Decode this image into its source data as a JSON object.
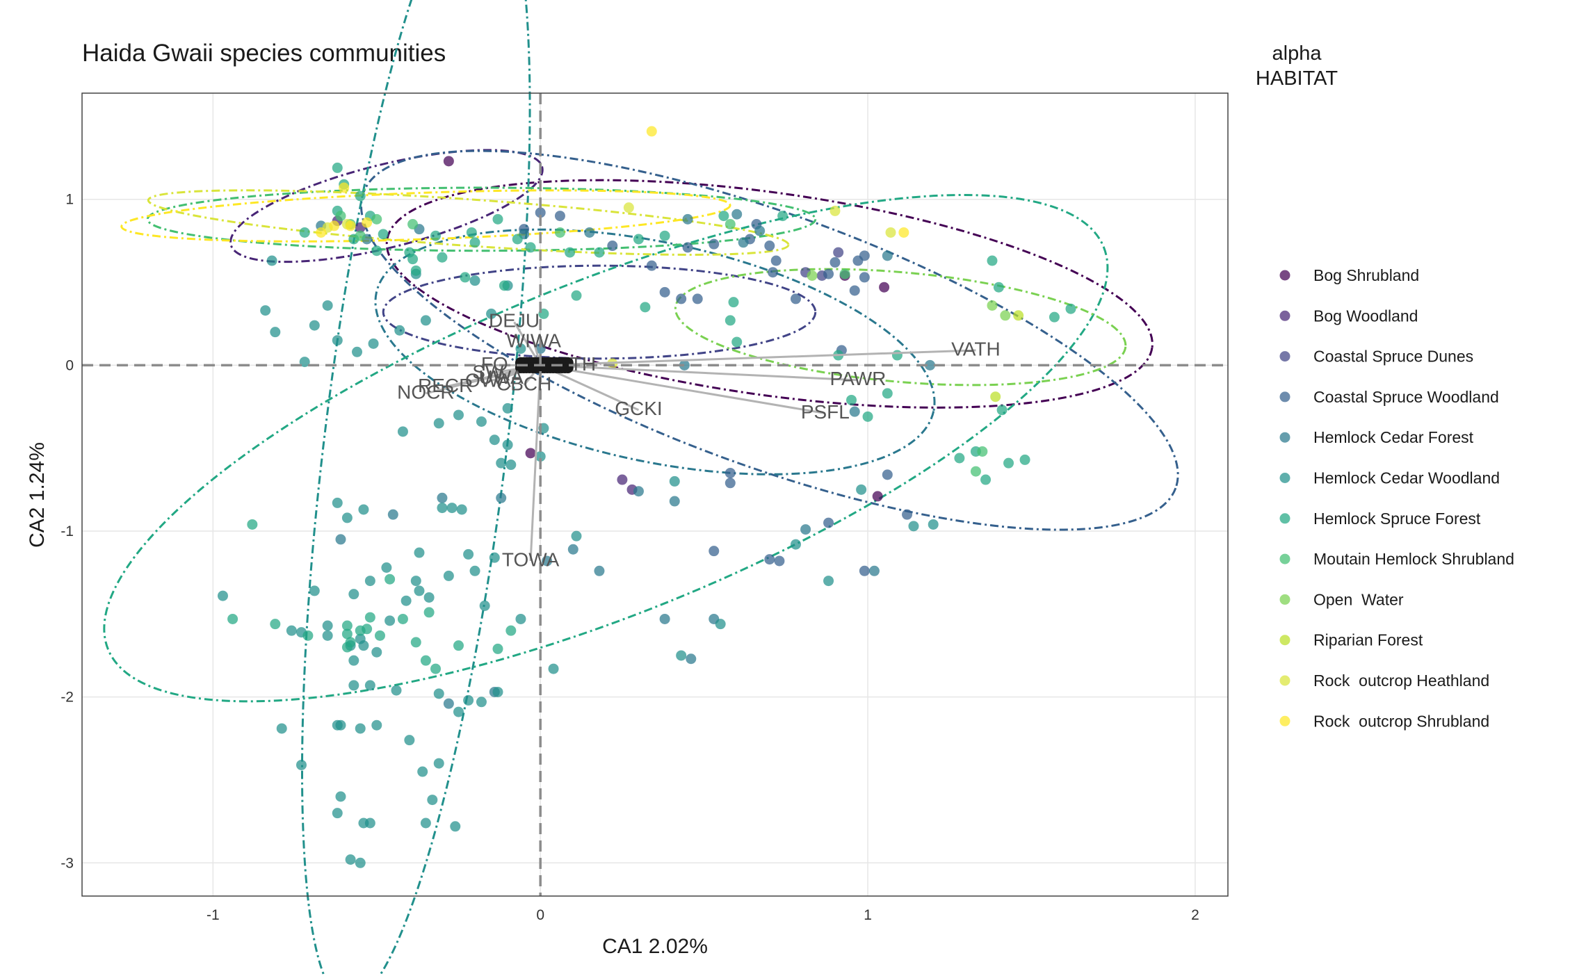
{
  "chart_data": {
    "type": "scatter",
    "title": "Haida Gwaii species communities",
    "xlabel": "CA1 2.02%",
    "ylabel": "CA2 1.24%",
    "xlim": [
      -1.4,
      2.1
    ],
    "ylim": [
      -3.2,
      1.64
    ],
    "xticks": [
      -1,
      0,
      1,
      2
    ],
    "yticks": [
      -3,
      -2,
      -1,
      0,
      1
    ],
    "xtick_labels": [
      "-1",
      "0",
      "1",
      "2"
    ],
    "ytick_labels": [
      "-3",
      "-2",
      "-1",
      "0",
      "1"
    ],
    "grid": true,
    "reference_lines": {
      "x": 0,
      "y": 0,
      "style": "dashed"
    },
    "legend": {
      "title_line1": "alpha",
      "title_line2": "HABITAT",
      "position": "right"
    },
    "colors": {
      "Bog Shrubland": "#440154",
      "Bog Woodland": "#482576",
      "Coastal Spruce Dunes": "#414487",
      "Coastal Spruce Woodland": "#35608D",
      "Hemlock Cedar Forest": "#2A788E",
      "Hemlock Cedar Woodland": "#21908C",
      "Hemlock Spruce Forest": "#22A884",
      "Moutain Hemlock Shrubland": "#43BF71",
      "Open  Water": "#7AD151",
      "Riparian Forest": "#BBDF27",
      "Rock  outcrop Heathland": "#D9E43A",
      "Rock  outcrop Shrubland": "#FDE725"
    },
    "series": [
      {
        "name": "Bog Shrubland",
        "x": [
          -0.28,
          0.93,
          1.05,
          1.03,
          -0.03
        ],
        "y": [
          1.23,
          0.54,
          0.47,
          -0.79,
          -0.53
        ]
      },
      {
        "name": "Bog Woodland",
        "x": [
          -0.62,
          -0.55,
          0.25,
          0.28
        ],
        "y": [
          0.87,
          0.83,
          -0.69,
          -0.75
        ]
      },
      {
        "name": "Coastal Spruce Dunes",
        "x": [
          0.81,
          0.86,
          0.91
        ],
        "y": [
          0.56,
          0.54,
          0.68
        ]
      },
      {
        "name": "Coastal Spruce Woodland",
        "x": [
          0.66,
          0.7,
          0.71,
          0.45,
          0.53,
          0.78,
          0.88,
          0.9,
          0.97,
          0.99,
          0.96,
          0.99,
          0.38,
          0.43,
          0.48,
          0.22,
          -0.05,
          0.0,
          0.06,
          0.34,
          0.64,
          0.72,
          0.92,
          1.06,
          1.12,
          0.88,
          0.7,
          0.73,
          0.99,
          0.53,
          0.58,
          0.58
        ],
        "y": [
          0.85,
          0.72,
          0.56,
          0.71,
          0.73,
          0.4,
          0.55,
          0.62,
          0.63,
          0.53,
          0.45,
          0.66,
          0.44,
          0.4,
          0.4,
          0.72,
          0.82,
          0.92,
          0.9,
          0.6,
          0.76,
          0.63,
          0.09,
          -0.66,
          -0.9,
          -0.95,
          -1.17,
          -1.18,
          -1.24,
          -1.12,
          -0.65,
          -0.71
        ]
      },
      {
        "name": "Hemlock Cedar Forest",
        "x": [
          -0.67,
          -0.53,
          -0.37,
          -0.05,
          0.15,
          0.45,
          0.67,
          0.6,
          0.62,
          1.06,
          1.19,
          0.96,
          0.38,
          0.53,
          0.18,
          0.1,
          0.02,
          -0.12,
          -0.3,
          -0.45,
          -0.61,
          0.0,
          0.44,
          0.46,
          0.81,
          1.02,
          -0.14,
          -0.28,
          0.3,
          0.41
        ],
        "y": [
          0.84,
          0.76,
          0.82,
          0.79,
          0.8,
          0.88,
          0.81,
          0.91,
          0.74,
          0.66,
          0.0,
          -0.28,
          -1.53,
          -1.53,
          -1.24,
          -1.11,
          -1.18,
          -0.8,
          -0.8,
          -0.9,
          -1.05,
          0.1,
          0.0,
          -1.77,
          -0.99,
          -1.24,
          -1.97,
          -2.04,
          -0.76,
          -0.82
        ]
      },
      {
        "name": "Hemlock Cedar Woodland",
        "x": [
          -0.82,
          -0.84,
          -0.81,
          -0.72,
          -0.65,
          -0.62,
          -0.69,
          -0.56,
          -0.51,
          -0.43,
          -0.35,
          -0.38,
          -0.2,
          -0.15,
          -0.1,
          -0.06,
          0.01,
          -0.42,
          -0.25,
          -0.31,
          -0.18,
          -0.14,
          -0.1,
          -0.09,
          -0.62,
          -0.59,
          -0.54,
          -0.52,
          -0.47,
          -0.38,
          -0.41,
          -0.3,
          -0.27,
          -0.24,
          -0.12,
          -0.57,
          -0.46,
          -0.69,
          -0.76,
          -0.58,
          -0.57,
          -0.5,
          -0.37,
          -0.34,
          -0.28,
          -0.2,
          -0.14,
          -0.55,
          -0.54,
          -0.65,
          -0.73,
          -0.65,
          -0.57,
          -0.52,
          -0.44,
          -0.31,
          -0.25,
          -0.18,
          -0.22,
          -0.13,
          -0.97,
          -0.62,
          -0.55,
          -0.5,
          -0.4,
          -0.36,
          -0.31,
          -0.61,
          -0.73,
          -0.79,
          -0.62,
          -0.61,
          -0.54,
          -0.52,
          -0.58,
          -0.55,
          -0.35,
          -0.26,
          -0.33,
          0.04,
          0.43,
          0.55,
          0.78,
          0.88,
          0.98,
          1.14,
          1.2,
          -0.37,
          -0.22,
          0.11,
          0.41,
          -0.1,
          0.0,
          -0.17,
          -0.06
        ],
        "y": [
          0.63,
          0.33,
          0.2,
          0.02,
          0.36,
          0.15,
          0.24,
          0.08,
          0.13,
          0.21,
          0.27,
          0.55,
          0.51,
          0.31,
          0.48,
          0.1,
          -0.38,
          -0.4,
          -0.3,
          -0.35,
          -0.34,
          -0.45,
          -0.26,
          -0.6,
          -0.83,
          -0.92,
          -0.87,
          -1.3,
          -1.22,
          -1.3,
          -1.42,
          -0.86,
          -0.86,
          -0.87,
          -0.59,
          -1.38,
          -1.54,
          -1.36,
          -1.6,
          -1.69,
          -1.78,
          -1.73,
          -1.36,
          -1.4,
          -1.27,
          -1.24,
          -1.16,
          -1.65,
          -1.69,
          -1.63,
          -1.61,
          -1.57,
          -1.93,
          -1.93,
          -1.96,
          -1.98,
          -2.09,
          -2.03,
          -2.02,
          -1.97,
          -1.39,
          -2.17,
          -2.19,
          -2.17,
          -2.26,
          -2.45,
          -2.4,
          -2.17,
          -2.41,
          -2.19,
          -2.7,
          -2.6,
          -2.76,
          -2.76,
          -2.98,
          -3.0,
          -2.76,
          -2.78,
          -2.62,
          -1.83,
          -1.75,
          -1.56,
          -1.08,
          -1.3,
          -0.75,
          -0.97,
          -0.96,
          -1.13,
          -1.14,
          -1.03,
          -0.7,
          -0.48,
          -0.55,
          -1.45,
          -1.53
        ]
      },
      {
        "name": "Hemlock Spruce Forest",
        "x": [
          -0.62,
          -0.6,
          -0.55,
          -0.52,
          -0.48,
          -0.4,
          -0.38,
          -0.32,
          -0.21,
          -0.13,
          -0.07,
          -0.03,
          0.09,
          0.18,
          0.3,
          0.38,
          0.56,
          0.74,
          -0.72,
          -0.62,
          -0.57,
          -0.5,
          -0.39,
          -0.3,
          -0.2,
          -0.23,
          -0.11,
          0.01,
          0.11,
          0.32,
          0.58,
          0.59,
          0.6,
          0.91,
          0.95,
          1.0,
          1.06,
          1.09,
          -0.88,
          -0.94,
          -0.81,
          -0.71,
          -0.59,
          -0.49,
          -0.42,
          -0.35,
          -0.32,
          -0.25,
          -0.13,
          -0.09,
          -0.38,
          -0.34,
          -0.55,
          -0.59,
          -0.58,
          -0.59,
          -0.53,
          -0.46,
          -0.52,
          1.36,
          1.28,
          1.33,
          1.43,
          1.48,
          1.38,
          1.4,
          1.57,
          1.62,
          1.41
        ],
        "y": [
          1.19,
          1.09,
          1.02,
          0.9,
          0.79,
          0.68,
          0.57,
          0.78,
          0.8,
          0.88,
          0.76,
          0.71,
          0.68,
          0.68,
          0.76,
          0.78,
          0.9,
          0.9,
          0.8,
          0.93,
          0.76,
          0.69,
          0.64,
          0.65,
          0.74,
          0.53,
          0.48,
          0.31,
          0.42,
          0.35,
          0.27,
          0.38,
          0.14,
          0.06,
          -0.21,
          -0.31,
          -0.17,
          0.06,
          -0.96,
          -1.53,
          -1.56,
          -1.63,
          -1.7,
          -1.63,
          -1.53,
          -1.78,
          -1.83,
          -1.69,
          -1.71,
          -1.6,
          -1.67,
          -1.49,
          -1.6,
          -1.57,
          -1.67,
          -1.62,
          -1.59,
          -1.29,
          -1.52,
          -0.69,
          -0.56,
          -0.52,
          -0.59,
          -0.57,
          0.63,
          0.47,
          0.29,
          0.34,
          -0.27
        ]
      },
      {
        "name": "Moutain Hemlock Shrubland",
        "x": [
          -0.61,
          -0.58,
          -0.55,
          -0.5,
          -0.39,
          0.06,
          1.35,
          1.33,
          0.93,
          0.58
        ],
        "y": [
          0.9,
          0.85,
          0.78,
          0.88,
          0.85,
          0.8,
          -0.52,
          -0.64,
          0.55,
          0.85
        ]
      },
      {
        "name": "Open  Water",
        "x": [
          1.38,
          1.42,
          0.83
        ],
        "y": [
          0.36,
          0.3,
          0.54
        ]
      },
      {
        "name": "Riparian Forest",
        "x": [
          1.46,
          1.39
        ],
        "y": [
          0.3,
          -0.19
        ]
      },
      {
        "name": "Rock  outcrop Heathland",
        "x": [
          0.9,
          1.07,
          0.27,
          -0.65,
          -0.59,
          0.22
        ],
        "y": [
          0.93,
          0.8,
          0.95,
          0.83,
          0.85,
          0.01
        ]
      },
      {
        "name": "Rock  outcrop Shrubland",
        "x": [
          0.34,
          1.11,
          -0.67,
          -0.63,
          -0.58,
          -0.53,
          -0.6
        ],
        "y": [
          1.41,
          0.8,
          0.8,
          0.84,
          0.84,
          0.86,
          1.07
        ]
      }
    ],
    "ellipses": [
      {
        "name": "Bog Shrubland",
        "cx": 0.7,
        "cy": 0.43,
        "rx": 1.18,
        "ry": 0.61,
        "angle": -8
      },
      {
        "name": "Bog Woodland",
        "cx": -0.47,
        "cy": 0.96,
        "rx": 0.49,
        "ry": 0.25,
        "angle": 14
      },
      {
        "name": "Coastal Spruce Dunes",
        "cx": 0.18,
        "cy": 0.32,
        "rx": 0.66,
        "ry": 0.28,
        "angle": 0
      },
      {
        "name": "Coastal Spruce Woodland",
        "cx": 0.7,
        "cy": 0.15,
        "rx": 1.32,
        "ry": 0.76,
        "angle": -20
      },
      {
        "name": "Hemlock Cedar Forest",
        "cx": 0.35,
        "cy": 0.08,
        "rx": 0.87,
        "ry": 0.66,
        "angle": -12
      },
      {
        "name": "Hemlock Cedar Woodland",
        "cx": -0.38,
        "cy": -0.45,
        "rx": 1.73,
        "ry": 0.55,
        "angle": 83
      },
      {
        "name": "Hemlock Spruce Forest",
        "cx": 0.2,
        "cy": -0.5,
        "rx": 1.64,
        "ry": 1.0,
        "angle": 22
      },
      {
        "name": "Moutain Hemlock Shrubland",
        "cx": -0.18,
        "cy": 0.88,
        "rx": 1.02,
        "ry": 0.19,
        "angle": 0
      },
      {
        "name": "Open  Water",
        "cx": 1.1,
        "cy": 0.23,
        "rx": 0.69,
        "ry": 0.33,
        "angle": -5
      },
      {
        "name": "Rock  outcrop Heathland",
        "cx": -0.22,
        "cy": 0.86,
        "rx": 0.98,
        "ry": 0.14,
        "angle": -4
      },
      {
        "name": "Rock  outcrop Shrubland",
        "cx": -0.35,
        "cy": 0.9,
        "rx": 0.93,
        "ry": 0.14,
        "angle": 2
      }
    ],
    "species_arrows": [
      {
        "label": "VATH",
        "x": 1.33,
        "y": 0.09
      },
      {
        "label": "PAWR",
        "x": 0.97,
        "y": -0.09
      },
      {
        "label": "PSFL",
        "x": 0.87,
        "y": -0.29
      },
      {
        "label": "GCKI",
        "x": 0.3,
        "y": -0.27
      },
      {
        "label": "TOWA",
        "x": -0.03,
        "y": -1.18
      },
      {
        "label": "DEJU",
        "x": -0.08,
        "y": 0.26
      },
      {
        "label": "WIWA",
        "x": -0.02,
        "y": 0.14
      },
      {
        "label": "NOCR",
        "x": -0.35,
        "y": -0.17
      },
      {
        "label": "RECR",
        "x": -0.29,
        "y": -0.13
      },
      {
        "label": "CBCH",
        "x": -0.05,
        "y": -0.12
      },
      {
        "label": "OWA",
        "x": -0.16,
        "y": -0.1
      },
      {
        "label": "UWA",
        "x": -0.12,
        "y": -0.08
      },
      {
        "label": "SW",
        "x": -0.16,
        "y": -0.05
      },
      {
        "label": "FO",
        "x": -0.14,
        "y": 0.0
      },
      {
        "label": "TH",
        "x": 0.13,
        "y": 0.0
      }
    ]
  }
}
